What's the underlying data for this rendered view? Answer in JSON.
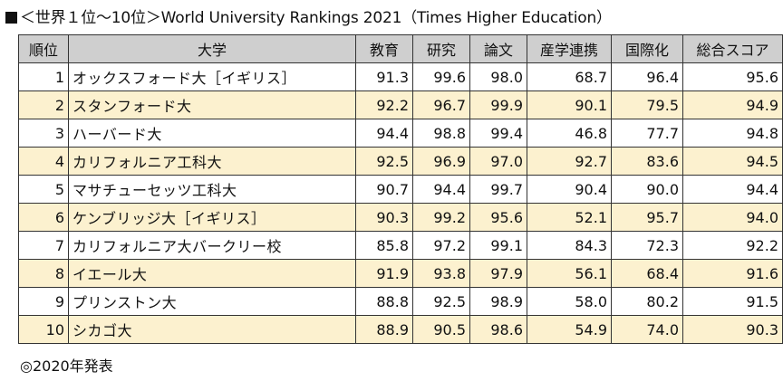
{
  "title": "＜世界１位〜10位＞World University Rankings 2021（Times Higher Education）",
  "headers": [
    "順位",
    "大学",
    "教育",
    "研究",
    "論文",
    "産学連携",
    "国際化",
    "総合スコア"
  ],
  "rows": [
    [
      "1",
      "オックスフォード大［イギリス］",
      "91.3",
      "99.6",
      "98.0",
      "68.7",
      "96.4",
      "95.6"
    ],
    [
      "2",
      "スタンフォード大",
      "92.2",
      "96.7",
      "99.9",
      "90.1",
      "79.5",
      "94.9"
    ],
    [
      "3",
      "ハーバード大",
      "94.4",
      "98.8",
      "99.4",
      "46.8",
      "77.7",
      "94.8"
    ],
    [
      "4",
      "カリフォルニア工科大",
      "92.5",
      "96.9",
      "97.0",
      "92.7",
      "83.6",
      "94.5"
    ],
    [
      "5",
      "マサチューセッツ工科大",
      "90.7",
      "94.4",
      "99.7",
      "90.4",
      "90.0",
      "94.4"
    ],
    [
      "6",
      "ケンブリッジ大［イギリス］",
      "90.3",
      "99.2",
      "95.6",
      "52.1",
      "95.7",
      "94.0"
    ],
    [
      "7",
      "カリフォルニア大バークリー校",
      "85.8",
      "97.2",
      "99.1",
      "84.3",
      "72.3",
      "92.2"
    ],
    [
      "8",
      "イエール大",
      "91.9",
      "93.8",
      "97.9",
      "56.1",
      "68.4",
      "91.6"
    ],
    [
      "9",
      "プリンストン大",
      "88.8",
      "92.5",
      "98.9",
      "58.0",
      "80.2",
      "91.5"
    ],
    [
      "10",
      "シカゴ大",
      "88.9",
      "90.5",
      "98.6",
      "54.9",
      "74.0",
      "90.3"
    ]
  ],
  "footer": "◎2020年発表",
  "colors": {
    "header_bg": "#cfcfcf",
    "stripe_bg": "#fcf1cf",
    "border": "#333333"
  }
}
